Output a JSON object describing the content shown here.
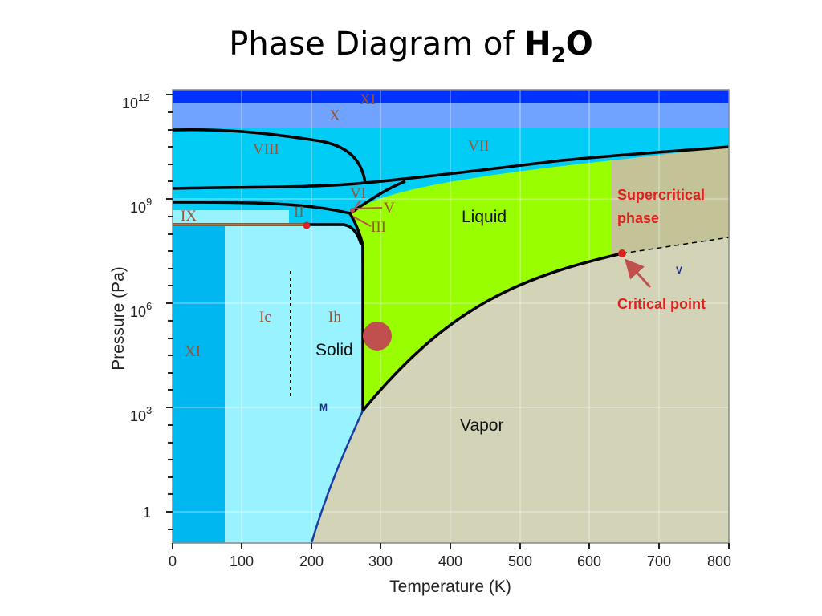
{
  "title": {
    "text": "Phase Diagram of ",
    "chem_main": "H",
    "chem_sub": "2",
    "chem_end": "O"
  },
  "x_axis": {
    "title": "Temperature (K)",
    "ticks": [
      "0",
      "100",
      "200",
      "300",
      "400",
      "500",
      "600",
      "700",
      "800"
    ]
  },
  "y_axis": {
    "title": "Pressure (Pa)",
    "ticks": [
      {
        "base": "10",
        "exp": "12"
      },
      {
        "base": "10",
        "exp": "9"
      },
      {
        "base": "10",
        "exp": "6"
      },
      {
        "base": "10",
        "exp": "3"
      },
      {
        "base": "1",
        "exp": ""
      }
    ]
  },
  "regions": {
    "liquid": "Liquid",
    "solid": "Solid",
    "vapor": "Vapor",
    "ice_xi_top": "XI",
    "ice_x": "X",
    "ice_viii": "VIII",
    "ice_vii": "VII",
    "ice_vi": "VI",
    "ice_v": "V",
    "ice_iii": "III",
    "ice_ix": "IX",
    "ice_ii": "II",
    "ice_ic": "Ic",
    "ice_ih": "Ih",
    "ice_xi_bottom": "XI",
    "m": "M",
    "v": "V"
  },
  "annotations": {
    "supercritical_line1": "Supercritical",
    "supercritical_line2": "phase",
    "critical_point": "Critical point"
  },
  "colors": {
    "plot_bg_cyan": "#00ccf5",
    "top_blue": "#0033ff",
    "x_band": "#6fa3ff",
    "ice_ih": "#99f2ff",
    "ice_xi_low": "#00b7f0",
    "liquid": "#99ff00",
    "vapor": "#d2d3b7",
    "supercritical": "#c4c297",
    "marker": "#c0504d",
    "red_text": "#e0201f"
  }
}
